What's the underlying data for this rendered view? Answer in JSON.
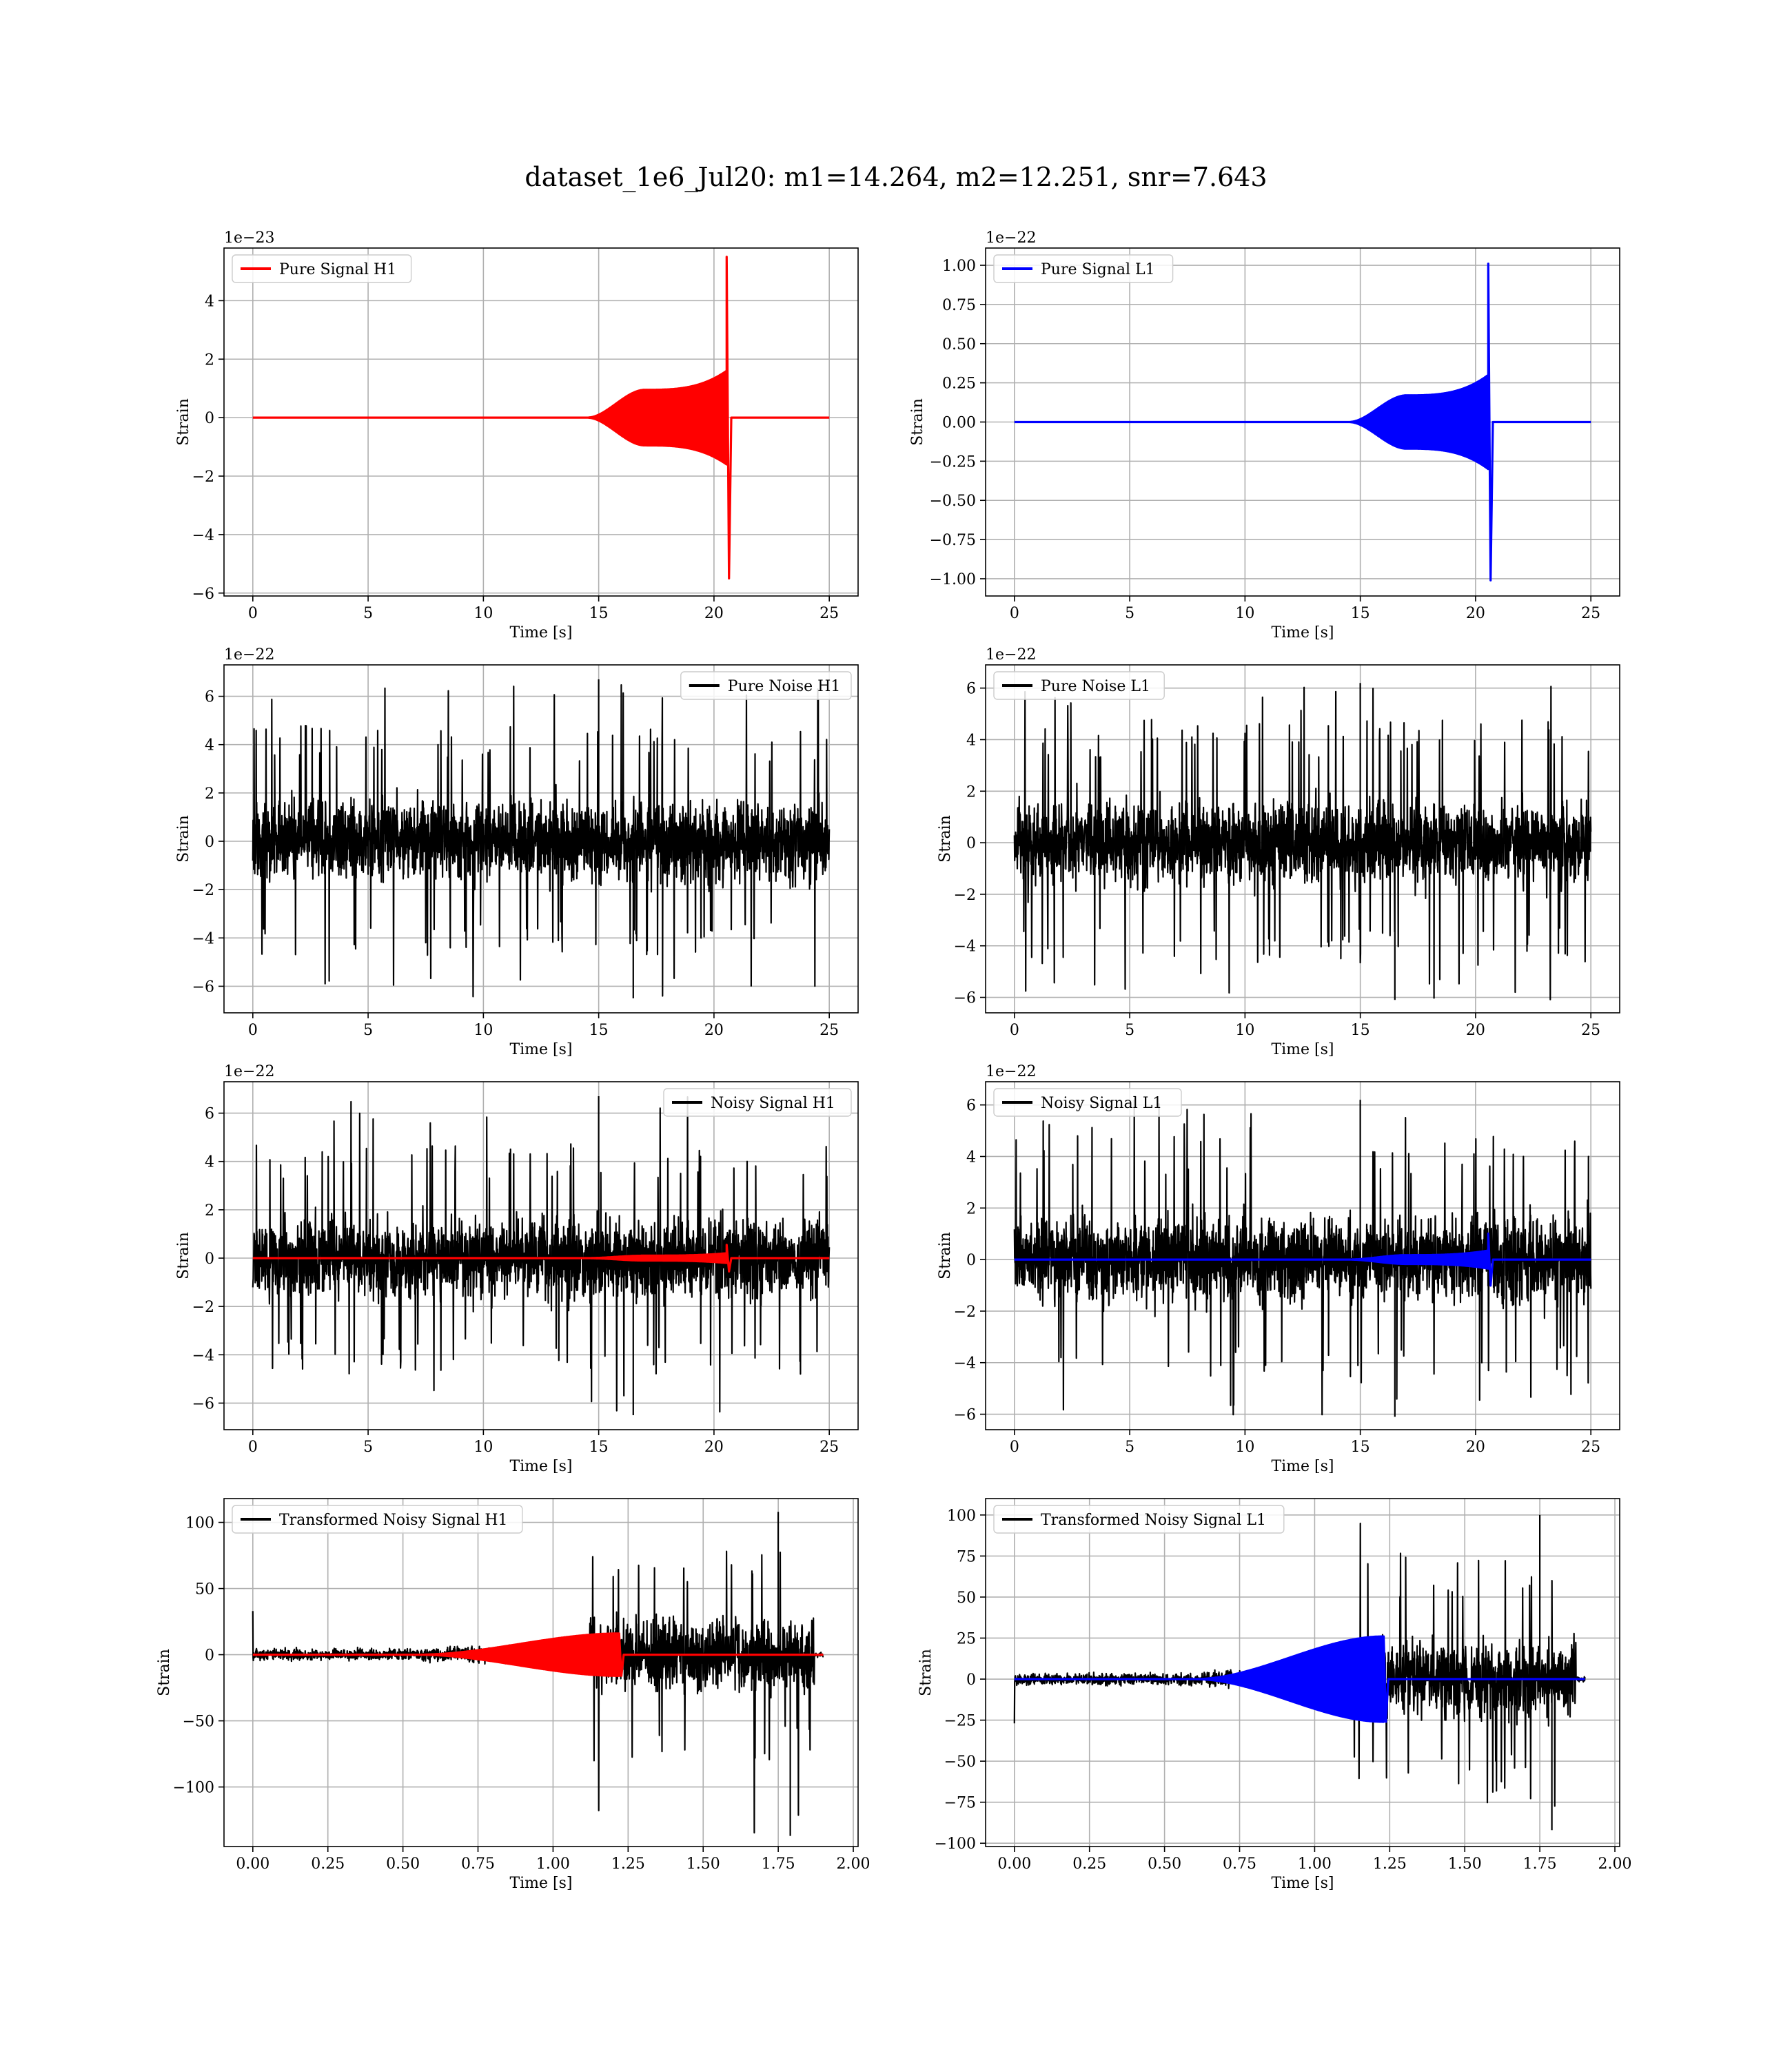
{
  "figure": {
    "title": "dataset_1e6_Jul20: m1=14.264, m2=12.251, snr=7.643"
  },
  "colors": {
    "h1_signal": "#ff0000",
    "l1_signal": "#0000ff",
    "noise": "#000000",
    "grid": "#b0b0b0"
  },
  "chart_data": [
    {
      "id": "pure-signal-h1",
      "type": "line",
      "xlabel": "Time [s]",
      "ylabel": "Strain",
      "offset": "1e−23",
      "xlim": [
        -1.25,
        26.25
      ],
      "ylim": [
        -6.1,
        5.8
      ],
      "xticks": [
        0,
        5,
        10,
        15,
        20,
        25
      ],
      "xtick_labels": [
        "0",
        "5",
        "10",
        "15",
        "20",
        "25"
      ],
      "yticks": [
        -6,
        -4,
        -2,
        0,
        2,
        4
      ],
      "ytick_labels": [
        "−6",
        "−4",
        "−2",
        "0",
        "2",
        "4"
      ],
      "legend": {
        "position": "top-left"
      },
      "series": [
        {
          "name": "Pure Signal H1",
          "color": "#ff0000",
          "kind": "chirp",
          "t_end": 25,
          "t_start": 14.5,
          "t_plateau": 17,
          "t_merge": 20.55,
          "plateau_amp": 0.95,
          "peak_amp": 5.5,
          "pre_peak_amp": 1.6,
          "ring_amp": 0,
          "in_legend": true
        }
      ]
    },
    {
      "id": "pure-signal-l1",
      "type": "line",
      "xlabel": "Time [s]",
      "ylabel": "Strain",
      "offset": "1e−22",
      "xlim": [
        -1.25,
        26.25
      ],
      "ylim": [
        -1.11,
        1.11
      ],
      "xticks": [
        0,
        5,
        10,
        15,
        20,
        25
      ],
      "xtick_labels": [
        "0",
        "5",
        "10",
        "15",
        "20",
        "25"
      ],
      "yticks": [
        -1.0,
        -0.75,
        -0.5,
        -0.25,
        0.0,
        0.25,
        0.5,
        0.75,
        1.0
      ],
      "ytick_labels": [
        "−1.00",
        "−0.75",
        "−0.50",
        "−0.25",
        "0.00",
        "0.25",
        "0.50",
        "0.75",
        "1.00"
      ],
      "legend": {
        "position": "top-left"
      },
      "series": [
        {
          "name": "Pure Signal L1",
          "color": "#0000ff",
          "kind": "chirp",
          "t_end": 25,
          "t_start": 14.5,
          "t_plateau": 17,
          "t_merge": 20.55,
          "plateau_amp": 0.17,
          "peak_amp": 1.01,
          "pre_peak_amp": 0.3,
          "ring_amp": 0,
          "in_legend": true
        }
      ]
    },
    {
      "id": "pure-noise-h1",
      "type": "line",
      "xlabel": "Time [s]",
      "ylabel": "Strain",
      "offset": "1e−22",
      "xlim": [
        -1.25,
        26.25
      ],
      "ylim": [
        -7.1,
        7.3
      ],
      "xticks": [
        0,
        5,
        10,
        15,
        20,
        25
      ],
      "xtick_labels": [
        "0",
        "5",
        "10",
        "15",
        "20",
        "25"
      ],
      "yticks": [
        -6,
        -4,
        -2,
        0,
        2,
        4,
        6
      ],
      "ytick_labels": [
        "−6",
        "−4",
        "−2",
        "0",
        "2",
        "4",
        "6"
      ],
      "legend": {
        "position": "top-right"
      },
      "series": [
        {
          "name": "Pure Noise H1",
          "color": "#000000",
          "kind": "noise",
          "t_end": 25,
          "core": 3.3,
          "spike_max": 6.7,
          "spike_min": -6.5,
          "in_legend": true
        }
      ]
    },
    {
      "id": "pure-noise-l1",
      "type": "line",
      "xlabel": "Time [s]",
      "ylabel": "Strain",
      "offset": "1e−22",
      "xlim": [
        -1.25,
        26.25
      ],
      "ylim": [
        -6.6,
        6.9
      ],
      "xticks": [
        0,
        5,
        10,
        15,
        20,
        25
      ],
      "xtick_labels": [
        "0",
        "5",
        "10",
        "15",
        "20",
        "25"
      ],
      "yticks": [
        -6,
        -4,
        -2,
        0,
        2,
        4,
        6
      ],
      "ytick_labels": [
        "−6",
        "−4",
        "−2",
        "0",
        "2",
        "4",
        "6"
      ],
      "legend": {
        "position": "top-left"
      },
      "series": [
        {
          "name": "Pure Noise L1",
          "color": "#000000",
          "kind": "noise",
          "t_end": 25,
          "core": 3.3,
          "spike_max": 6.2,
          "spike_min": -6.1,
          "in_legend": true
        }
      ]
    },
    {
      "id": "noisy-signal-h1",
      "type": "line",
      "xlabel": "Time [s]",
      "ylabel": "Strain",
      "offset": "1e−22",
      "xlim": [
        -1.25,
        26.25
      ],
      "ylim": [
        -7.1,
        7.3
      ],
      "xticks": [
        0,
        5,
        10,
        15,
        20,
        25
      ],
      "xtick_labels": [
        "0",
        "5",
        "10",
        "15",
        "20",
        "25"
      ],
      "yticks": [
        -6,
        -4,
        -2,
        0,
        2,
        4,
        6
      ],
      "ytick_labels": [
        "−6",
        "−4",
        "−2",
        "0",
        "2",
        "4",
        "6"
      ],
      "legend": {
        "position": "top-right"
      },
      "series": [
        {
          "name": "Noisy Signal H1",
          "color": "#000000",
          "kind": "noise",
          "t_end": 25,
          "core": 3.3,
          "spike_max": 6.7,
          "spike_min": -6.5,
          "in_legend": true
        },
        {
          "name": "",
          "color": "#ff0000",
          "kind": "chirp",
          "t_end": 25,
          "t_start": 14.5,
          "t_plateau": 17,
          "t_merge": 20.55,
          "plateau_amp": 0.1,
          "peak_amp": 0.55,
          "pre_peak_amp": 0.2,
          "ring_amp": 0,
          "in_legend": false
        }
      ]
    },
    {
      "id": "noisy-signal-l1",
      "type": "line",
      "xlabel": "Time [s]",
      "ylabel": "Strain",
      "offset": "1e−22",
      "xlim": [
        -1.25,
        26.25
      ],
      "ylim": [
        -6.6,
        6.9
      ],
      "xticks": [
        0,
        5,
        10,
        15,
        20,
        25
      ],
      "xtick_labels": [
        "0",
        "5",
        "10",
        "15",
        "20",
        "25"
      ],
      "yticks": [
        -6,
        -4,
        -2,
        0,
        2,
        4,
        6
      ],
      "ytick_labels": [
        "−6",
        "−4",
        "−2",
        "0",
        "2",
        "4",
        "6"
      ],
      "legend": {
        "position": "top-left"
      },
      "series": [
        {
          "name": "Noisy Signal L1",
          "color": "#000000",
          "kind": "noise",
          "t_end": 25,
          "core": 3.3,
          "spike_max": 6.2,
          "spike_min": -6.1,
          "in_legend": true
        },
        {
          "name": "",
          "color": "#0000ff",
          "kind": "chirp",
          "t_end": 25,
          "t_start": 14.5,
          "t_plateau": 17,
          "t_merge": 20.55,
          "plateau_amp": 0.17,
          "peak_amp": 1.01,
          "pre_peak_amp": 0.35,
          "ring_amp": 0,
          "in_legend": false
        }
      ]
    },
    {
      "id": "transformed-noisy-signal-h1",
      "type": "line",
      "xlabel": "Time [s]",
      "ylabel": "Strain",
      "offset": "",
      "xlim": [
        -0.096,
        2.016
      ],
      "ylim": [
        -145,
        118
      ],
      "xticks": [
        0.0,
        0.25,
        0.5,
        0.75,
        1.0,
        1.25,
        1.5,
        1.75,
        2.0
      ],
      "xtick_labels": [
        "0.00",
        "0.25",
        "0.50",
        "0.75",
        "1.00",
        "1.25",
        "1.50",
        "1.75",
        "2.00"
      ],
      "yticks": [
        -100,
        -50,
        0,
        50,
        100
      ],
      "ytick_labels": [
        "−100",
        "−50",
        "0",
        "50",
        "100"
      ],
      "legend": {
        "position": "top-left"
      },
      "series": [
        {
          "name": "Transformed Noisy Signal H1",
          "color": "#000000",
          "kind": "transformed",
          "t_end": 1.9,
          "t_jump": 1.12,
          "t_stop": 1.87,
          "low_amp": 7,
          "mid_amp": 14,
          "high_amp": 45,
          "spike_max": 108,
          "spike_min": -137,
          "start_spike": 33,
          "in_legend": true
        },
        {
          "name": "",
          "color": "#ff0000",
          "kind": "chirp",
          "t_end": 1.9,
          "t_start": 0.55,
          "t_plateau": 1.22,
          "t_merge": 1.22,
          "plateau_amp": 16,
          "peak_amp": 16,
          "pre_peak_amp": 16,
          "ring_amp": 0,
          "in_legend": false
        }
      ]
    },
    {
      "id": "transformed-noisy-signal-l1",
      "type": "line",
      "xlabel": "Time [s]",
      "ylabel": "Strain",
      "offset": "",
      "xlim": [
        -0.096,
        2.016
      ],
      "ylim": [
        -102,
        110
      ],
      "xticks": [
        0.0,
        0.25,
        0.5,
        0.75,
        1.0,
        1.25,
        1.5,
        1.75,
        2.0
      ],
      "xtick_labels": [
        "0.00",
        "0.25",
        "0.50",
        "0.75",
        "1.00",
        "1.25",
        "1.50",
        "1.75",
        "2.00"
      ],
      "yticks": [
        -100,
        -75,
        -50,
        -25,
        0,
        25,
        50,
        75,
        100
      ],
      "ytick_labels": [
        "−100",
        "−75",
        "−50",
        "−25",
        "0",
        "25",
        "50",
        "75",
        "100"
      ],
      "legend": {
        "position": "top-left"
      },
      "series": [
        {
          "name": "Transformed Noisy Signal L1",
          "color": "#000000",
          "kind": "transformed",
          "t_end": 1.9,
          "t_jump": 1.1,
          "t_stop": 1.87,
          "low_amp": 6,
          "mid_amp": 11,
          "high_amp": 38,
          "spike_max": 100,
          "spike_min": -92,
          "start_spike": -27,
          "in_legend": true
        },
        {
          "name": "",
          "color": "#0000ff",
          "kind": "chirp",
          "t_end": 1.9,
          "t_start": 0.6,
          "t_plateau": 1.23,
          "t_merge": 1.23,
          "plateau_amp": 26,
          "peak_amp": 26,
          "pre_peak_amp": 26,
          "ring_amp": 0,
          "in_legend": false
        }
      ]
    }
  ]
}
